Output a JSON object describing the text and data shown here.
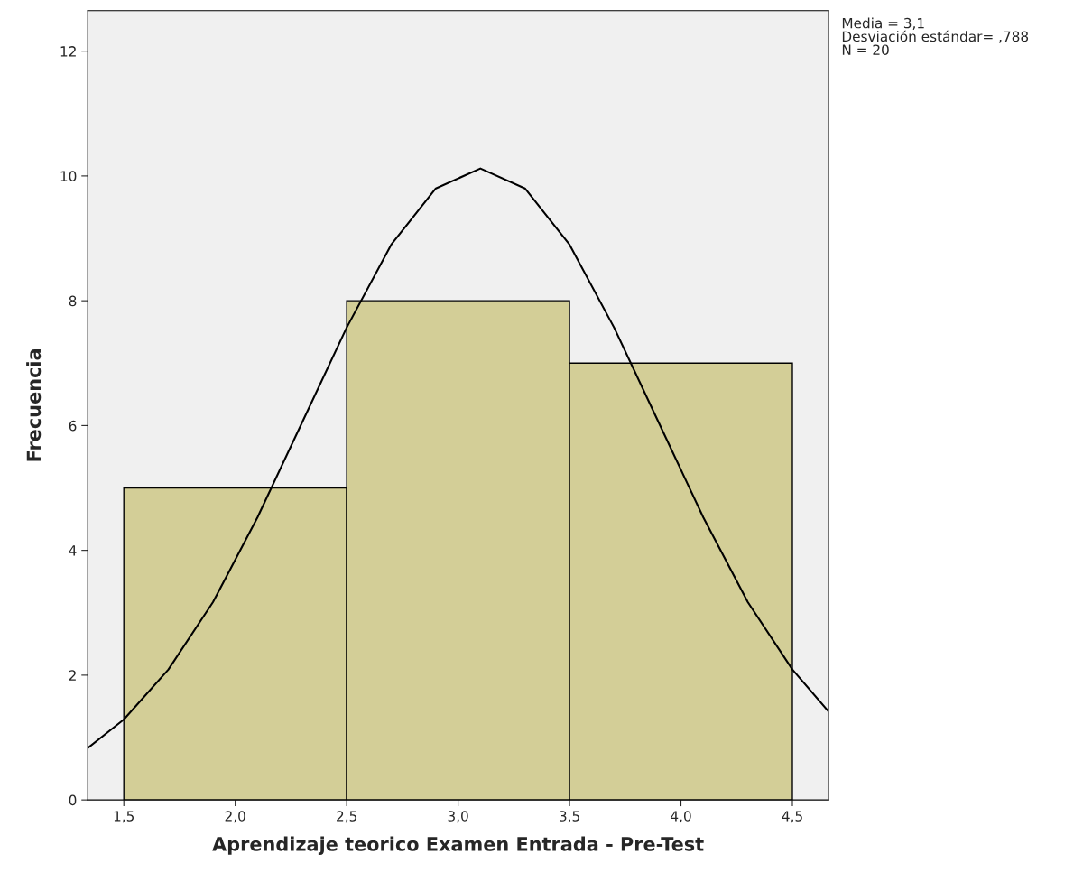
{
  "chart_data": {
    "type": "histogram",
    "xlabel": "Aprendizaje teorico Examen Entrada - Pre-Test",
    "ylabel": "Frecuencia",
    "bins": [
      1.5,
      2.5,
      3.5,
      4.5
    ],
    "values": [
      5,
      8,
      7
    ],
    "color": "#d3ce97",
    "series": [
      {
        "type": "line",
        "color": "#000000",
        "x": [
          1.338,
          1.5,
          1.7,
          1.9,
          2.1,
          2.3,
          2.5,
          2.7,
          2.9,
          3.1,
          3.3,
          3.5,
          3.7,
          3.9,
          4.1,
          4.3,
          4.5,
          4.662
        ],
        "values": [
          0.83,
          1.29,
          2.09,
          3.17,
          4.53,
          6.05,
          7.57,
          8.9,
          9.8,
          10.12,
          9.8,
          8.9,
          7.57,
          6.05,
          4.53,
          3.17,
          2.09,
          1.42
        ]
      }
    ],
    "xlim": [
      1.338,
      4.662
    ],
    "ylim": [
      0,
      12.65
    ],
    "xticks": [
      {
        "value": 1.5,
        "label": "1,5"
      },
      {
        "value": 2.0,
        "label": "2,0"
      },
      {
        "value": 2.5,
        "label": "2,5"
      },
      {
        "value": 3.0,
        "label": "3,0"
      },
      {
        "value": 3.5,
        "label": "3,5"
      },
      {
        "value": 4.0,
        "label": "4,0"
      },
      {
        "value": 4.5,
        "label": "4,5"
      }
    ],
    "yticks": [
      0,
      2,
      4,
      6,
      8,
      10,
      12
    ],
    "annotations": [
      "Media = 3,1",
      "Desviación estándar= ,788",
      "N = 20"
    ],
    "grid": false
  }
}
